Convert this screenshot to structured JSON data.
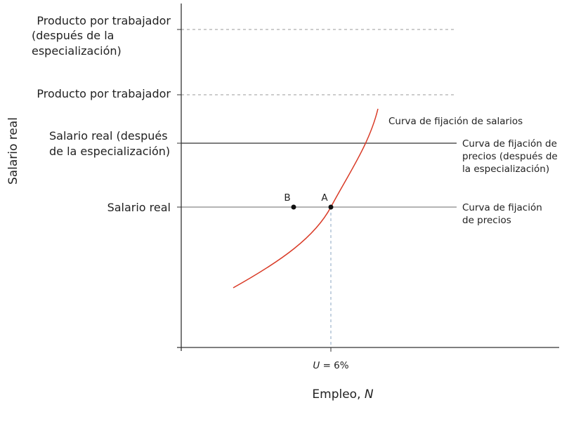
{
  "y_axis_label": "Salario real",
  "x_axis_label": {
    "text": "Empleo,",
    "variable": "N"
  },
  "x_marker": {
    "variable": "U",
    "text": "= 6%"
  },
  "left_labels": [
    {
      "lines": [
        "Producto por trabajador",
        "(después de la",
        "especialización)"
      ]
    },
    {
      "lines": [
        "Producto por trabajador"
      ]
    },
    {
      "lines": [
        "Salario real (después",
        "de la especialización)"
      ]
    },
    {
      "lines": [
        "Salario real"
      ]
    }
  ],
  "curves": [
    {
      "lines": [
        "Curva de fijación de salarios"
      ]
    },
    {
      "lines": [
        "Curva de fijación de",
        "precios (después de",
        "la especialización)"
      ]
    },
    {
      "lines": [
        "Curva de fijación",
        "de precios"
      ]
    }
  ],
  "points": [
    {
      "label": "A"
    },
    {
      "label": "B"
    }
  ]
}
